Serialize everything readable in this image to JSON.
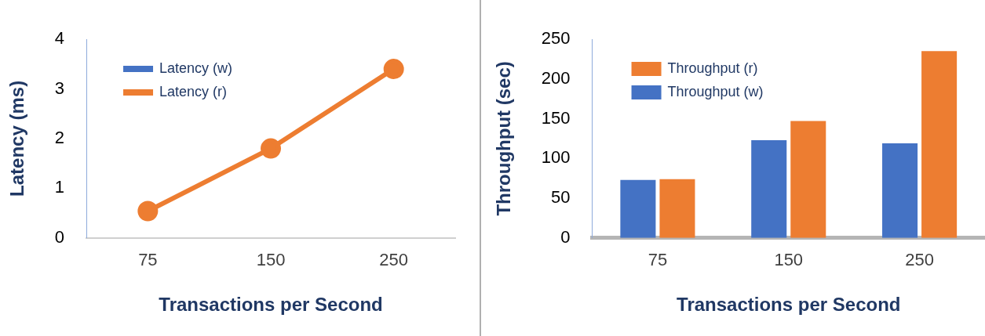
{
  "chart_data": [
    {
      "type": "line",
      "xlabel": "Transactions per Second",
      "ylabel": "Latency (ms)",
      "categories": [
        "75",
        "150",
        "250"
      ],
      "ylim": [
        0,
        4
      ],
      "yticks": [
        0,
        1,
        2,
        3,
        4
      ],
      "grid": false,
      "legend": "top left",
      "marker": "circle",
      "series": [
        {
          "name": "Latency (w)",
          "color": "#4472c4",
          "values": [
            null,
            null,
            null
          ]
        },
        {
          "name": "Latency (r)",
          "color": "#ed7d31",
          "values": [
            0.54,
            1.8,
            3.4
          ]
        }
      ]
    },
    {
      "type": "bar",
      "xlabel": "Transactions per Second",
      "ylabel": "Throughput (sec)",
      "categories": [
        "75",
        "150",
        "250"
      ],
      "ylim": [
        0,
        250
      ],
      "yticks": [
        0,
        50,
        100,
        150,
        200,
        250
      ],
      "grid": false,
      "legend": "top left",
      "series": [
        {
          "name": "Throughput (w)",
          "color": "#4472c4",
          "values": [
            73,
            123,
            119
          ]
        },
        {
          "name": "Throughput (r)",
          "color": "#ed7d31",
          "values": [
            74,
            147,
            235
          ]
        }
      ]
    }
  ]
}
